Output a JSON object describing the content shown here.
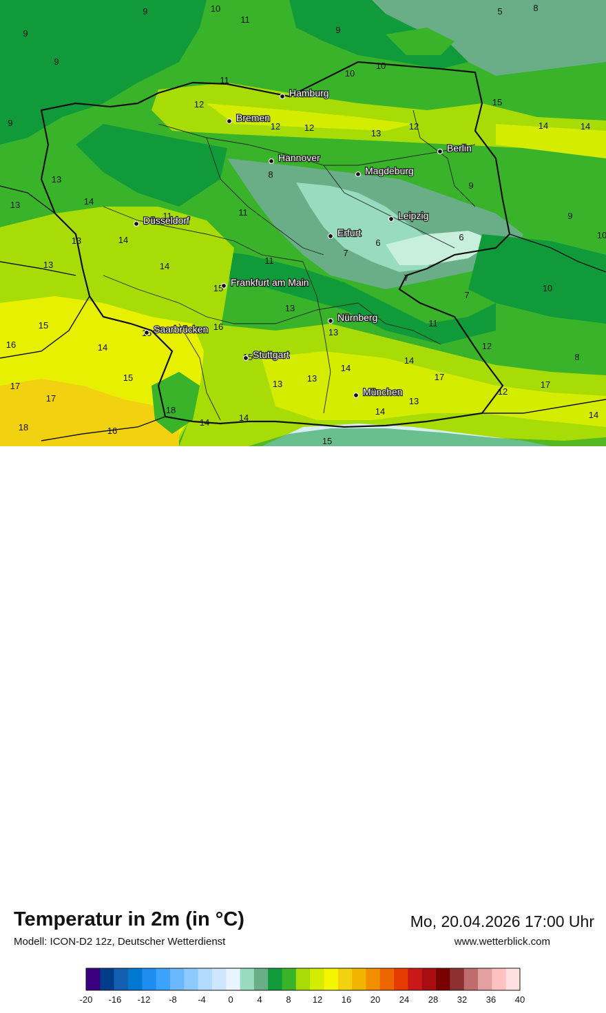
{
  "header": {
    "title": "Temperatur in 2m (in °C)",
    "model": "Modell: ICON-D2 12z, Deutscher Wetterdienst",
    "datetime": "Mo, 20.04.2026 17:00 Uhr",
    "website": "www.wetterblick.com"
  },
  "colors": {
    "water": "#66aa88",
    "land_base": "#39b32a",
    "cold_zone": "#6aae88",
    "cool_zone": "#109a3a",
    "mild_zone": "#a8dc06",
    "warm_zone": "#e6f000",
    "hot_zone": "#f2d210",
    "alps_snow": "#d8ecf4",
    "border_national": "#111111",
    "border_state": "#222222"
  },
  "cities": [
    {
      "name": "Hamburg"
    },
    {
      "name": "Bremen"
    },
    {
      "name": "Berlin"
    },
    {
      "name": "Hannover"
    },
    {
      "name": "Magdeburg"
    },
    {
      "name": "Düsseldorf"
    },
    {
      "name": "Leipzig"
    },
    {
      "name": "Erfurt"
    },
    {
      "name": "Frankfurt am Main"
    },
    {
      "name": "Nürnberg"
    },
    {
      "name": "Saarbrücken"
    },
    {
      "name": "Stuttgart"
    },
    {
      "name": "München"
    }
  ],
  "isotherm_labels": [
    "9",
    "8",
    "5",
    "11",
    "10",
    "9",
    "10",
    "10",
    "11",
    "12",
    "12",
    "12",
    "13",
    "12",
    "15",
    "14",
    "14",
    "9",
    "9",
    "9",
    "9",
    "13",
    "14",
    "13",
    "13",
    "14",
    "11",
    "8",
    "13",
    "10",
    "14",
    "11",
    "7",
    "6",
    "6",
    "11",
    "7",
    "7",
    "10",
    "11",
    "12",
    "13",
    "13",
    "13",
    "15",
    "16",
    "15",
    "16",
    "15",
    "14",
    "14",
    "14",
    "13",
    "15",
    "15",
    "17",
    "17",
    "17",
    "18",
    "18",
    "16",
    "14",
    "14",
    "14",
    "13",
    "17",
    "14",
    "15",
    "12",
    "8",
    "9"
  ],
  "legend": {
    "ticks": [
      "-20",
      "-16",
      "-12",
      "-8",
      "-4",
      "0",
      "4",
      "8",
      "12",
      "16",
      "20",
      "24",
      "28",
      "32",
      "36",
      "40"
    ],
    "colors": [
      "#3a007f",
      "#003c8a",
      "#1460b0",
      "#0078d2",
      "#1e8cf0",
      "#3ca2ff",
      "#6ab8ff",
      "#8ccaff",
      "#b2daff",
      "#cfe6ff",
      "#e8f4ff",
      "#98dcc0",
      "#6aae88",
      "#109a3a",
      "#39b32a",
      "#a8dc06",
      "#d4ec00",
      "#f4f600",
      "#f2d210",
      "#f2b400",
      "#f28e00",
      "#ee6600",
      "#e63c00",
      "#c81818",
      "#a80e10",
      "#780000",
      "#8e3030",
      "#c06c6c",
      "#e2a0a0",
      "#ffc0c0",
      "#ffe0e0"
    ]
  }
}
